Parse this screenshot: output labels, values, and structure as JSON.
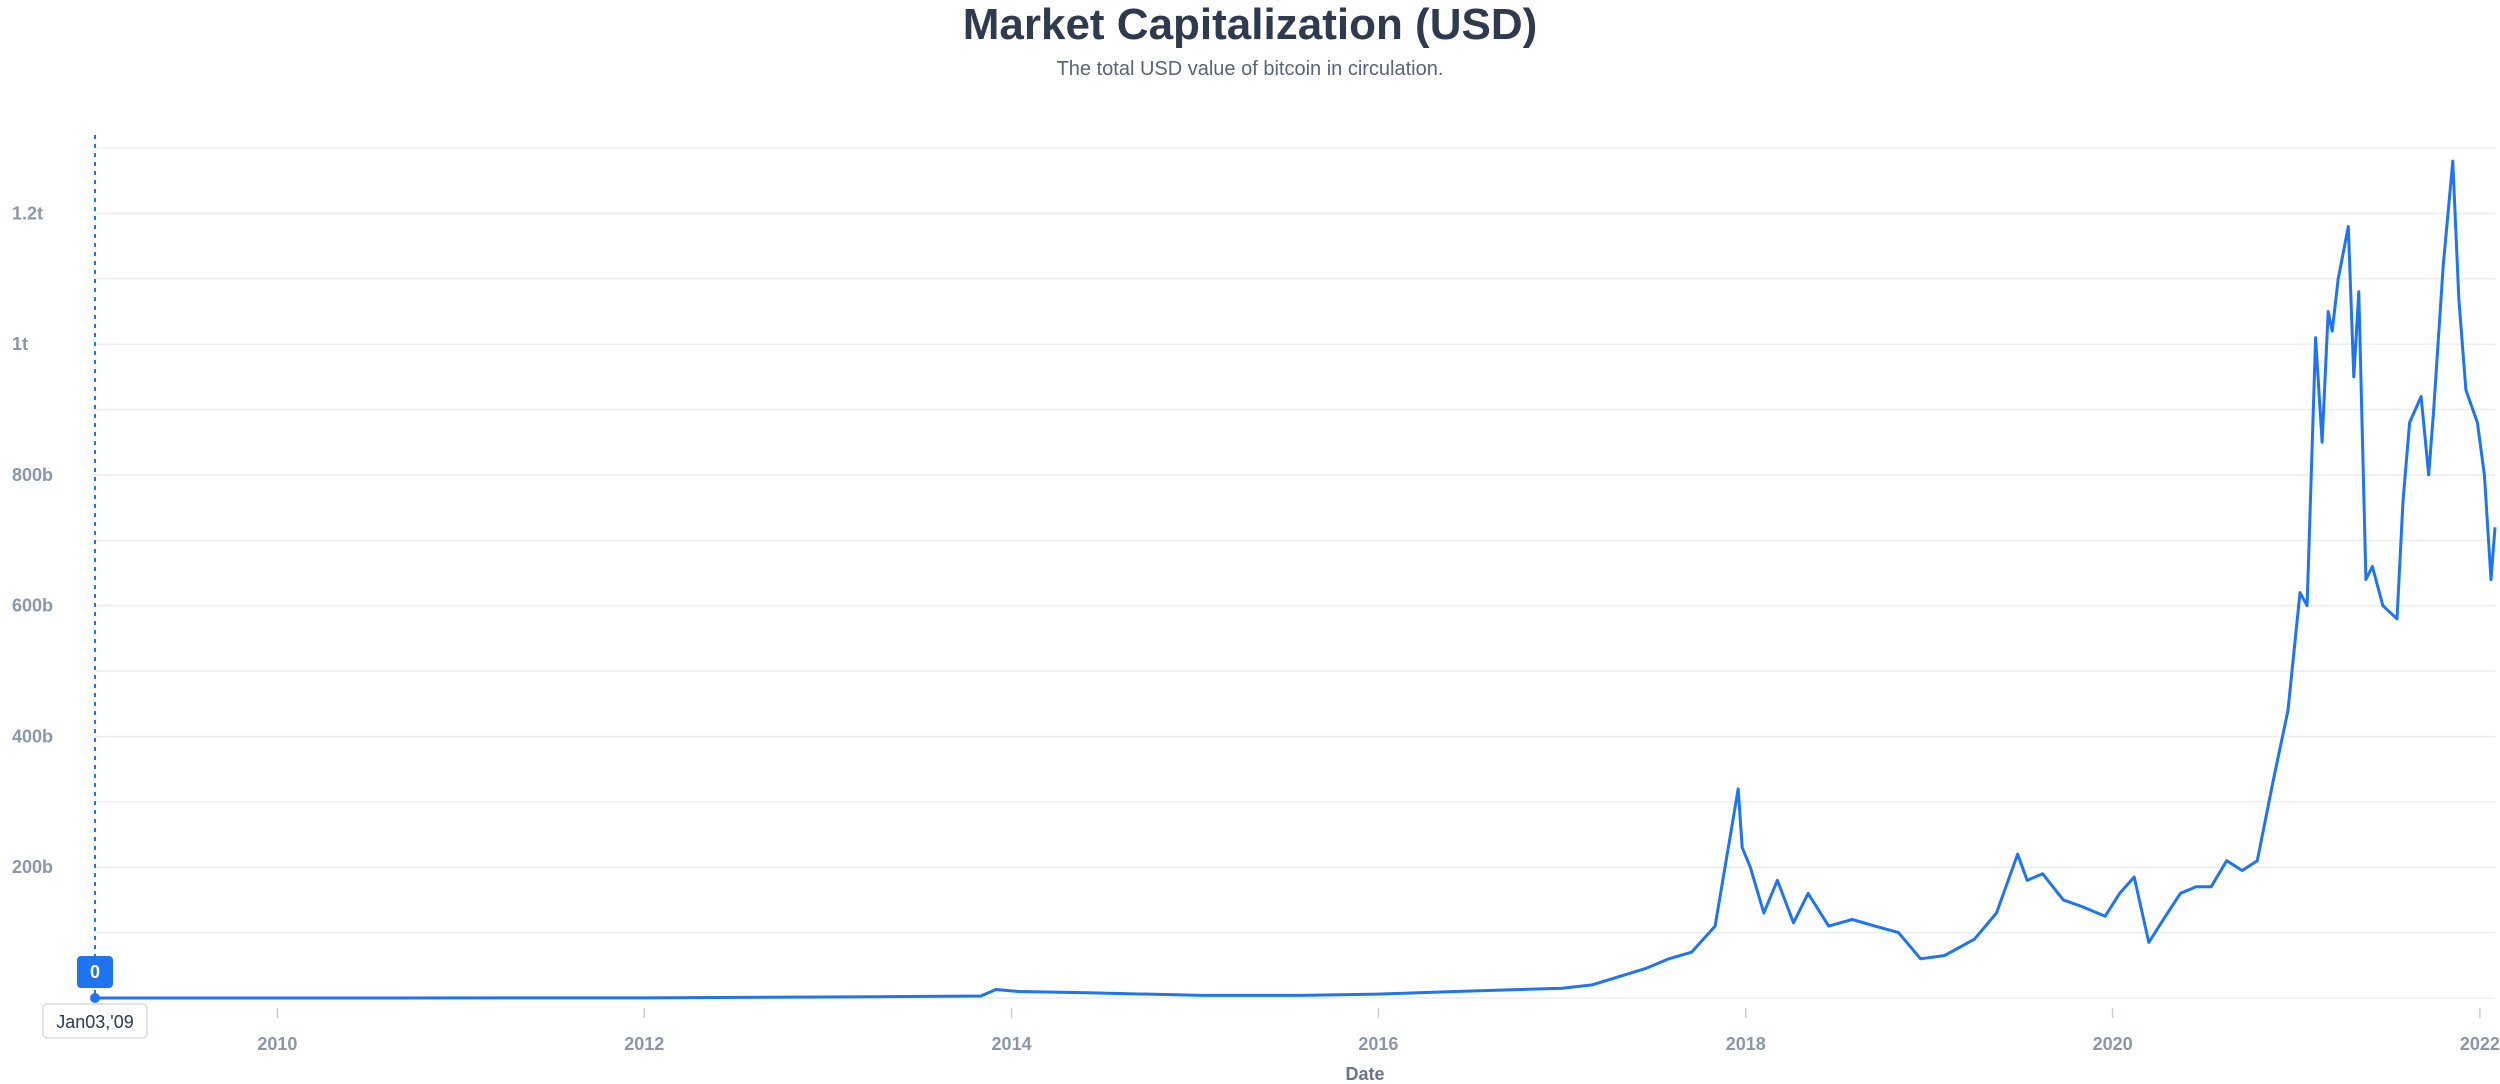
{
  "chart_data": {
    "type": "line",
    "title": "Market Capitalization (USD)",
    "subtitle": "The total USD value of bitcoin in circulation.",
    "xlabel": "Date",
    "ylabel": "",
    "x_ticks": [
      "2010",
      "2012",
      "2014",
      "2016",
      "2018",
      "2020",
      "2022"
    ],
    "y_ticks": [
      "200b",
      "400b",
      "600b",
      "800b",
      "1t",
      "1.2t"
    ],
    "xlim": [
      "2009-01-03",
      "2022-01-31"
    ],
    "ylim": [
      0,
      1300
    ],
    "y_unit": "billion USD",
    "grid": true,
    "color": "#1f75f0",
    "hover": {
      "date_label": "Jan03,'09",
      "value_label": "0"
    },
    "series": [
      {
        "x": [
          "2009-01-03",
          "2010-01-01",
          "2011-06-01",
          "2012-01-01",
          "2013-04-10",
          "2013-11-01",
          "2013-12-01",
          "2014-01-15",
          "2014-06-01",
          "2015-01-15",
          "2015-08-01",
          "2016-01-01",
          "2016-06-01",
          "2017-01-01",
          "2017-03-01",
          "2017-06-15",
          "2017-08-01",
          "2017-09-15",
          "2017-11-01",
          "2017-12-17",
          "2017-12-25",
          "2018-01-10",
          "2018-02-06",
          "2018-03-05",
          "2018-04-06",
          "2018-05-05",
          "2018-06-15",
          "2018-08-01",
          "2018-09-15",
          "2018-11-01",
          "2018-12-15",
          "2019-02-01",
          "2019-04-01",
          "2019-05-15",
          "2019-06-26",
          "2019-07-15",
          "2019-08-15",
          "2019-09-25",
          "2019-11-01",
          "2019-12-17",
          "2020-01-15",
          "2020-02-13",
          "2020-03-13",
          "2020-04-15",
          "2020-05-15",
          "2020-06-15",
          "2020-07-15",
          "2020-08-15",
          "2020-09-15",
          "2020-10-15",
          "2020-11-15",
          "2020-12-15",
          "2021-01-08",
          "2021-01-22",
          "2021-02-08",
          "2021-02-21",
          "2021-03-05",
          "2021-03-13",
          "2021-03-25",
          "2021-04-14",
          "2021-04-25",
          "2021-05-05",
          "2021-05-19",
          "2021-06-01",
          "2021-06-22",
          "2021-07-20",
          "2021-08-01",
          "2021-08-14",
          "2021-09-06",
          "2021-09-21",
          "2021-10-01",
          "2021-10-20",
          "2021-11-08",
          "2021-11-20",
          "2021-12-04",
          "2021-12-27",
          "2022-01-10",
          "2022-01-23",
          "2022-01-31"
        ],
        "values": [
          0,
          0,
          0.1,
          0.1,
          2,
          3,
          13,
          10,
          8,
          4,
          4,
          6,
          10,
          15,
          20,
          45,
          60,
          70,
          110,
          320,
          230,
          200,
          130,
          180,
          115,
          160,
          110,
          120,
          110,
          100,
          60,
          65,
          90,
          130,
          220,
          180,
          190,
          150,
          140,
          125,
          160,
          185,
          85,
          125,
          160,
          170,
          170,
          210,
          195,
          210,
          330,
          440,
          620,
          600,
          1010,
          850,
          1050,
          1020,
          1100,
          1180,
          950,
          1080,
          640,
          660,
          600,
          580,
          760,
          880,
          920,
          800,
          900,
          1120,
          1280,
          1070,
          930,
          880,
          800,
          640,
          720
        ]
      }
    ]
  }
}
